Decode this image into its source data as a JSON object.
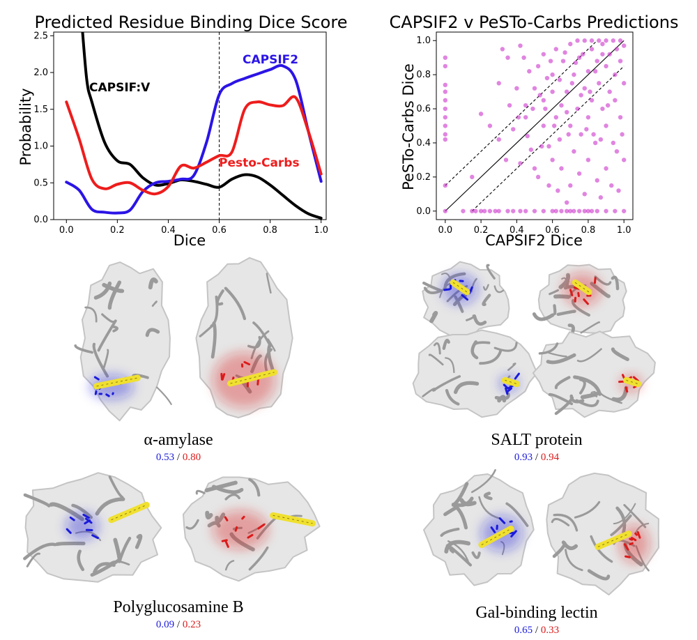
{
  "colors": {
    "capsif2": "#2b14e6",
    "pesto": "#ee1c1c",
    "capsifv": "#000000",
    "scatter": "#cc33cc",
    "carb": "#f0e030",
    "score_blue": "#1a1adc",
    "score_red": "#dc1a1a",
    "protein": "#9a9a9a"
  },
  "chart_data": [
    {
      "type": "line",
      "title": "Predicted Residue Binding Dice Score",
      "xlabel": "Dice",
      "ylabel": "Probability",
      "xlim": [
        -0.05,
        1.02
      ],
      "ylim": [
        0,
        2.55
      ],
      "xticks": [
        "0.0",
        "0.2",
        "0.4",
        "0.6",
        "0.8",
        "1.0"
      ],
      "yticks": [
        "0.0",
        "0.5",
        "1.0",
        "1.5",
        "2.0",
        "2.5"
      ],
      "vline_x": 0.6,
      "annotations": [
        "CAPSIF:V",
        "CAPSIF2",
        "Pesto-Carbs"
      ],
      "x": [
        0.0,
        0.05,
        0.1,
        0.15,
        0.2,
        0.25,
        0.3,
        0.35,
        0.4,
        0.45,
        0.5,
        0.55,
        0.6,
        0.65,
        0.7,
        0.75,
        0.8,
        0.85,
        0.9,
        0.95,
        1.0
      ],
      "series": [
        {
          "name": "CAPSIF:V",
          "color_key": "capsifv",
          "x": [
            0.06,
            0.08,
            0.1,
            0.15,
            0.2,
            0.25,
            0.3,
            0.35,
            0.4,
            0.45,
            0.5,
            0.55,
            0.6,
            0.65,
            0.7,
            0.75,
            0.8,
            0.85,
            0.9,
            0.95,
            1.0
          ],
          "values": [
            2.7,
            1.9,
            1.6,
            1.05,
            0.8,
            0.75,
            0.57,
            0.47,
            0.49,
            0.54,
            0.52,
            0.48,
            0.44,
            0.55,
            0.61,
            0.58,
            0.47,
            0.33,
            0.19,
            0.08,
            0.02
          ]
        },
        {
          "name": "CAPSIF2",
          "color_key": "capsif2",
          "values": [
            0.51,
            0.4,
            0.14,
            0.1,
            0.09,
            0.13,
            0.38,
            0.5,
            0.52,
            0.55,
            0.6,
            1.05,
            1.7,
            1.85,
            1.92,
            1.98,
            2.04,
            2.09,
            1.9,
            1.2,
            0.52
          ]
        },
        {
          "name": "Pesto-Carbs",
          "color_key": "pesto",
          "values": [
            1.6,
            1.1,
            0.55,
            0.42,
            0.48,
            0.5,
            0.4,
            0.35,
            0.45,
            0.73,
            0.7,
            0.78,
            0.87,
            0.92,
            1.5,
            1.6,
            1.56,
            1.55,
            1.66,
            1.2,
            0.62
          ]
        }
      ]
    },
    {
      "type": "scatter",
      "title": "CAPSIF2 v PeSTo-Carbs Predictions",
      "xlabel": "CAPSIF2 Dice",
      "ylabel": "PeSTo-Carbs Dice",
      "xlim": [
        -0.05,
        1.05
      ],
      "ylim": [
        -0.05,
        1.05
      ],
      "xticks": [
        "0.0",
        "0.2",
        "0.4",
        "0.6",
        "0.8",
        "1.0"
      ],
      "yticks": [
        "0.0",
        "0.2",
        "0.4",
        "0.6",
        "0.8",
        "1.0"
      ],
      "diagonals": [
        {
          "offset": 0,
          "style": "solid"
        },
        {
          "offset": 0.15,
          "style": "dashed"
        },
        {
          "offset": -0.15,
          "style": "dashed"
        }
      ],
      "points": [
        [
          0.0,
          0.0
        ],
        [
          0.0,
          0.15
        ],
        [
          0.0,
          0.42
        ],
        [
          0.0,
          0.45
        ],
        [
          0.0,
          0.5
        ],
        [
          0.0,
          0.55
        ],
        [
          0.0,
          0.6
        ],
        [
          0.0,
          0.65
        ],
        [
          0.0,
          0.7
        ],
        [
          0.0,
          0.74
        ],
        [
          0.0,
          0.85
        ],
        [
          0.0,
          0.9
        ],
        [
          0.1,
          0.0
        ],
        [
          0.15,
          0.0
        ],
        [
          0.17,
          0.0
        ],
        [
          0.2,
          0.0
        ],
        [
          0.22,
          0.0
        ],
        [
          0.25,
          0.0
        ],
        [
          0.28,
          0.0
        ],
        [
          0.3,
          0.0
        ],
        [
          0.35,
          0.0
        ],
        [
          0.38,
          0.0
        ],
        [
          0.42,
          0.0
        ],
        [
          0.45,
          0.0
        ],
        [
          0.5,
          0.0
        ],
        [
          0.55,
          0.0
        ],
        [
          0.6,
          0.0
        ],
        [
          0.62,
          0.0
        ],
        [
          0.65,
          0.0
        ],
        [
          0.68,
          0.0
        ],
        [
          0.7,
          0.0
        ],
        [
          0.72,
          0.0
        ],
        [
          0.75,
          0.0
        ],
        [
          0.78,
          0.0
        ],
        [
          0.8,
          0.0
        ],
        [
          0.82,
          0.0
        ],
        [
          0.85,
          0.0
        ],
        [
          0.9,
          0.0
        ],
        [
          0.95,
          0.0
        ],
        [
          1.0,
          0.0
        ],
        [
          0.15,
          0.2
        ],
        [
          0.2,
          0.57
        ],
        [
          0.25,
          0.5
        ],
        [
          0.3,
          0.75
        ],
        [
          0.32,
          0.95
        ],
        [
          0.35,
          0.9
        ],
        [
          0.38,
          0.48
        ],
        [
          0.4,
          0.72
        ],
        [
          0.42,
          0.97
        ],
        [
          0.45,
          0.62
        ],
        [
          0.45,
          0.55
        ],
        [
          0.48,
          0.36
        ],
        [
          0.5,
          0.72
        ],
        [
          0.5,
          0.25
        ],
        [
          0.52,
          0.85
        ],
        [
          0.52,
          0.2
        ],
        [
          0.55,
          0.5
        ],
        [
          0.55,
          0.65
        ],
        [
          0.55,
          0.92
        ],
        [
          0.58,
          0.38
        ],
        [
          0.58,
          0.15
        ],
        [
          0.6,
          0.7
        ],
        [
          0.6,
          0.8
        ],
        [
          0.6,
          0.3
        ],
        [
          0.62,
          0.55
        ],
        [
          0.62,
          0.95
        ],
        [
          0.64,
          0.42
        ],
        [
          0.65,
          0.25
        ],
        [
          0.65,
          0.62
        ],
        [
          0.66,
          0.88
        ],
        [
          0.68,
          0.05
        ],
        [
          0.68,
          0.7
        ],
        [
          0.7,
          0.15
        ],
        [
          0.7,
          0.5
        ],
        [
          0.7,
          0.98
        ],
        [
          0.72,
          0.35
        ],
        [
          0.72,
          0.8
        ],
        [
          0.74,
          0.6
        ],
        [
          0.75,
          0.9
        ],
        [
          0.75,
          0.22
        ],
        [
          0.76,
          0.45
        ],
        [
          0.78,
          0.1
        ],
        [
          0.78,
          0.72
        ],
        [
          0.8,
          0.82
        ],
        [
          0.8,
          0.3
        ],
        [
          0.8,
          0.55
        ],
        [
          0.82,
          0.95
        ],
        [
          0.82,
          0.65
        ],
        [
          0.84,
          0.4
        ],
        [
          0.85,
          0.88
        ],
        [
          0.85,
          0.18
        ],
        [
          0.86,
          0.75
        ],
        [
          0.88,
          0.6
        ],
        [
          0.88,
          0.98
        ],
        [
          0.9,
          0.5
        ],
        [
          0.9,
          0.85
        ],
        [
          0.9,
          0.25
        ],
        [
          0.92,
          0.7
        ],
        [
          0.92,
          0.92
        ],
        [
          0.94,
          0.4
        ],
        [
          0.95,
          0.8
        ],
        [
          0.95,
          0.65
        ],
        [
          0.96,
          0.95
        ],
        [
          0.98,
          0.55
        ],
        [
          0.98,
          0.88
        ],
        [
          1.0,
          0.75
        ],
        [
          1.0,
          0.97
        ],
        [
          1.0,
          0.3
        ],
        [
          0.74,
          1.0
        ],
        [
          0.78,
          1.0
        ],
        [
          0.82,
          1.0
        ],
        [
          0.86,
          1.0
        ],
        [
          0.9,
          1.0
        ],
        [
          0.94,
          1.0
        ],
        [
          0.98,
          1.0
        ],
        [
          0.88,
          0.92
        ],
        [
          0.84,
          0.82
        ],
        [
          0.76,
          0.68
        ],
        [
          0.68,
          0.58
        ],
        [
          0.64,
          0.77
        ],
        [
          0.56,
          0.6
        ],
        [
          0.46,
          0.44
        ],
        [
          0.42,
          0.28
        ],
        [
          0.36,
          0.62
        ],
        [
          0.3,
          0.42
        ],
        [
          0.97,
          0.12
        ],
        [
          0.93,
          0.15
        ],
        [
          0.87,
          0.08
        ],
        [
          0.83,
          0.45
        ],
        [
          0.79,
          0.48
        ],
        [
          0.73,
          0.87
        ],
        [
          0.67,
          0.93
        ],
        [
          0.63,
          0.12
        ],
        [
          0.57,
          0.78
        ],
        [
          0.53,
          0.68
        ],
        [
          0.47,
          0.82
        ],
        [
          0.44,
          0.9
        ],
        [
          0.99,
          0.45
        ],
        [
          0.96,
          0.35
        ],
        [
          0.91,
          0.62
        ],
        [
          0.87,
          0.42
        ],
        [
          0.81,
          0.7
        ],
        [
          0.77,
          0.92
        ],
        [
          0.71,
          0.75
        ],
        [
          0.69,
          0.45
        ],
        [
          0.61,
          0.5
        ],
        [
          0.59,
          0.88
        ],
        [
          0.54,
          0.38
        ],
        [
          0.49,
          0.6
        ],
        [
          0.41,
          0.55
        ],
        [
          0.34,
          0.3
        ]
      ]
    }
  ],
  "proteins": [
    {
      "name": "α-amylase",
      "capsif2_score": "0.53",
      "sep": "/",
      "pesto_score": "0.80"
    },
    {
      "name": "SALT protein",
      "capsif2_score": "0.93",
      "sep": "/",
      "pesto_score": "0.94"
    },
    {
      "name": "Polyglucosamine B",
      "capsif2_score": "0.09",
      "sep": "/",
      "pesto_score": "0.23"
    },
    {
      "name": "Gal-binding lectin",
      "capsif2_score": "0.65",
      "sep": "/",
      "pesto_score": "0.33"
    }
  ]
}
